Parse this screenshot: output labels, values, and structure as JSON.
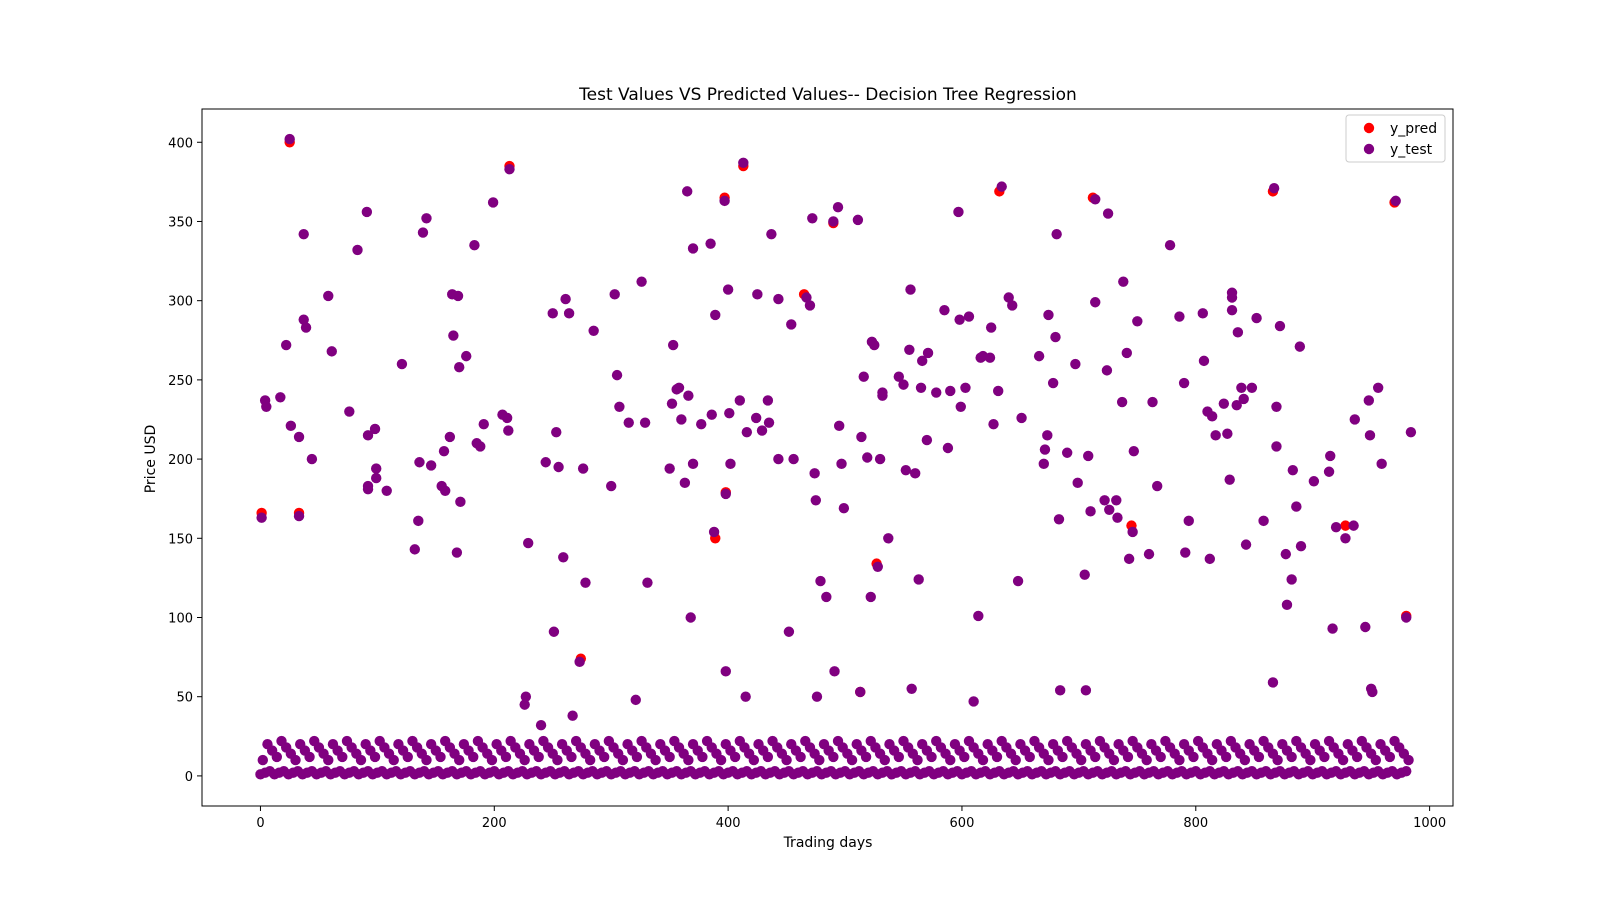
{
  "chart_data": {
    "type": "scatter",
    "title": "Test Values VS Predicted Values-- Decision Tree Regression",
    "xlabel": "Trading days",
    "ylabel": "Price USD",
    "xlim": [
      -50,
      1020
    ],
    "ylim": [
      -19,
      421
    ],
    "xticks": [
      0,
      200,
      400,
      600,
      800,
      1000
    ],
    "yticks": [
      0,
      50,
      100,
      150,
      200,
      250,
      300,
      350,
      400
    ],
    "grid": false,
    "legend_position": "top-right",
    "marker": "circle",
    "series": [
      {
        "name": "y_pred",
        "color": "#ff0000",
        "points": [
          [
            1,
            166
          ],
          [
            25,
            400
          ],
          [
            33,
            166
          ],
          [
            213,
            385
          ],
          [
            274,
            74
          ],
          [
            389,
            150
          ],
          [
            397,
            365
          ],
          [
            398,
            179
          ],
          [
            413,
            385
          ],
          [
            465,
            304
          ],
          [
            490,
            349
          ],
          [
            513,
            53
          ],
          [
            527,
            134
          ],
          [
            632,
            369
          ],
          [
            712,
            365
          ],
          [
            745,
            158
          ],
          [
            866,
            369
          ],
          [
            928,
            158
          ],
          [
            970,
            362
          ],
          [
            980,
            101
          ]
        ]
      },
      {
        "name": "y_test",
        "color": "#800080",
        "points": [
          [
            1,
            163
          ],
          [
            4,
            237
          ],
          [
            5,
            233
          ],
          [
            17,
            239
          ],
          [
            22,
            272
          ],
          [
            25,
            402
          ],
          [
            26,
            221
          ],
          [
            33,
            164
          ],
          [
            33,
            214
          ],
          [
            37,
            342
          ],
          [
            37,
            288
          ],
          [
            39,
            283
          ],
          [
            44,
            200
          ],
          [
            58,
            303
          ],
          [
            61,
            268
          ],
          [
            76,
            230
          ],
          [
            83,
            332
          ],
          [
            91,
            356
          ],
          [
            92,
            215
          ],
          [
            92,
            183
          ],
          [
            92,
            181
          ],
          [
            98,
            219
          ],
          [
            99,
            194
          ],
          [
            99,
            188
          ],
          [
            108,
            180
          ],
          [
            121,
            260
          ],
          [
            132,
            143
          ],
          [
            135,
            161
          ],
          [
            136,
            198
          ],
          [
            139,
            343
          ],
          [
            142,
            352
          ],
          [
            146,
            196
          ],
          [
            155,
            183
          ],
          [
            157,
            205
          ],
          [
            158,
            180
          ],
          [
            162,
            214
          ],
          [
            164,
            304
          ],
          [
            165,
            278
          ],
          [
            168,
            141
          ],
          [
            169,
            303
          ],
          [
            170,
            258
          ],
          [
            171,
            173
          ],
          [
            176,
            265
          ],
          [
            183,
            335
          ],
          [
            185,
            210
          ],
          [
            188,
            208
          ],
          [
            191,
            222
          ],
          [
            199,
            362
          ],
          [
            207,
            228
          ],
          [
            211,
            226
          ],
          [
            212,
            218
          ],
          [
            213,
            383
          ],
          [
            226,
            45
          ],
          [
            227,
            50
          ],
          [
            229,
            147
          ],
          [
            240,
            32
          ],
          [
            244,
            198
          ],
          [
            250,
            292
          ],
          [
            251,
            91
          ],
          [
            253,
            217
          ],
          [
            255,
            195
          ],
          [
            259,
            138
          ],
          [
            261,
            301
          ],
          [
            264,
            292
          ],
          [
            267,
            38
          ],
          [
            273,
            72
          ],
          [
            276,
            194
          ],
          [
            278,
            122
          ],
          [
            285,
            281
          ],
          [
            300,
            183
          ],
          [
            303,
            304
          ],
          [
            305,
            253
          ],
          [
            307,
            233
          ],
          [
            315,
            223
          ],
          [
            321,
            48
          ],
          [
            326,
            312
          ],
          [
            329,
            223
          ],
          [
            331,
            122
          ],
          [
            350,
            194
          ],
          [
            352,
            235
          ],
          [
            353,
            272
          ],
          [
            356,
            244
          ],
          [
            358,
            245
          ],
          [
            360,
            225
          ],
          [
            363,
            185
          ],
          [
            365,
            369
          ],
          [
            366,
            240
          ],
          [
            368,
            100
          ],
          [
            370,
            197
          ],
          [
            370,
            333
          ],
          [
            377,
            222
          ],
          [
            385,
            336
          ],
          [
            386,
            228
          ],
          [
            388,
            154
          ],
          [
            389,
            291
          ],
          [
            397,
            363
          ],
          [
            398,
            178
          ],
          [
            398,
            66
          ],
          [
            400,
            307
          ],
          [
            401,
            229
          ],
          [
            402,
            197
          ],
          [
            410,
            237
          ],
          [
            413,
            387
          ],
          [
            415,
            50
          ],
          [
            416,
            217
          ],
          [
            424,
            226
          ],
          [
            425,
            304
          ],
          [
            429,
            218
          ],
          [
            434,
            237
          ],
          [
            435,
            223
          ],
          [
            437,
            342
          ],
          [
            443,
            200
          ],
          [
            443,
            301
          ],
          [
            452,
            91
          ],
          [
            454,
            285
          ],
          [
            456,
            200
          ],
          [
            467,
            302
          ],
          [
            470,
            297
          ],
          [
            472,
            352
          ],
          [
            474,
            191
          ],
          [
            475,
            174
          ],
          [
            476,
            50
          ],
          [
            479,
            123
          ],
          [
            484,
            113
          ],
          [
            490,
            350
          ],
          [
            491,
            66
          ],
          [
            494,
            359
          ],
          [
            495,
            221
          ],
          [
            497,
            197
          ],
          [
            499,
            169
          ],
          [
            511,
            351
          ],
          [
            513,
            53
          ],
          [
            514,
            214
          ],
          [
            516,
            252
          ],
          [
            519,
            201
          ],
          [
            522,
            113
          ],
          [
            523,
            274
          ],
          [
            525,
            272
          ],
          [
            528,
            132
          ],
          [
            530,
            200
          ],
          [
            532,
            240
          ],
          [
            532,
            242
          ],
          [
            537,
            150
          ],
          [
            546,
            252
          ],
          [
            550,
            247
          ],
          [
            552,
            193
          ],
          [
            555,
            269
          ],
          [
            556,
            307
          ],
          [
            557,
            55
          ],
          [
            560,
            191
          ],
          [
            563,
            124
          ],
          [
            565,
            245
          ],
          [
            566,
            262
          ],
          [
            570,
            212
          ],
          [
            571,
            267
          ],
          [
            578,
            242
          ],
          [
            585,
            294
          ],
          [
            588,
            207
          ],
          [
            590,
            243
          ],
          [
            597,
            356
          ],
          [
            598,
            288
          ],
          [
            599,
            233
          ],
          [
            603,
            245
          ],
          [
            606,
            290
          ],
          [
            610,
            47
          ],
          [
            614,
            101
          ],
          [
            616,
            264
          ],
          [
            618,
            265
          ],
          [
            624,
            264
          ],
          [
            625,
            283
          ],
          [
            627,
            222
          ],
          [
            631,
            243
          ],
          [
            634,
            372
          ],
          [
            640,
            302
          ],
          [
            643,
            297
          ],
          [
            648,
            123
          ],
          [
            651,
            226
          ],
          [
            666,
            265
          ],
          [
            670,
            197
          ],
          [
            671,
            206
          ],
          [
            673,
            215
          ],
          [
            674,
            291
          ],
          [
            678,
            248
          ],
          [
            680,
            277
          ],
          [
            681,
            342
          ],
          [
            683,
            162
          ],
          [
            684,
            54
          ],
          [
            690,
            204
          ],
          [
            697,
            260
          ],
          [
            699,
            185
          ],
          [
            705,
            127
          ],
          [
            706,
            54
          ],
          [
            708,
            202
          ],
          [
            710,
            167
          ],
          [
            714,
            299
          ],
          [
            714,
            364
          ],
          [
            722,
            174
          ],
          [
            724,
            256
          ],
          [
            725,
            355
          ],
          [
            726,
            168
          ],
          [
            732,
            174
          ],
          [
            733,
            163
          ],
          [
            737,
            236
          ],
          [
            738,
            312
          ],
          [
            741,
            267
          ],
          [
            743,
            137
          ],
          [
            746,
            154
          ],
          [
            747,
            205
          ],
          [
            750,
            287
          ],
          [
            760,
            140
          ],
          [
            763,
            236
          ],
          [
            767,
            183
          ],
          [
            778,
            335
          ],
          [
            786,
            290
          ],
          [
            790,
            248
          ],
          [
            791,
            141
          ],
          [
            794,
            161
          ],
          [
            806,
            292
          ],
          [
            807,
            262
          ],
          [
            810,
            230
          ],
          [
            812,
            137
          ],
          [
            814,
            227
          ],
          [
            817,
            215
          ],
          [
            824,
            235
          ],
          [
            827,
            216
          ],
          [
            829,
            187
          ],
          [
            831,
            302
          ],
          [
            831,
            305
          ],
          [
            831,
            294
          ],
          [
            835,
            234
          ],
          [
            836,
            280
          ],
          [
            839,
            245
          ],
          [
            841,
            238
          ],
          [
            843,
            146
          ],
          [
            848,
            245
          ],
          [
            852,
            289
          ],
          [
            858,
            161
          ],
          [
            866,
            59
          ],
          [
            867,
            371
          ],
          [
            869,
            233
          ],
          [
            869,
            208
          ],
          [
            872,
            284
          ],
          [
            877,
            140
          ],
          [
            878,
            108
          ],
          [
            882,
            124
          ],
          [
            883,
            193
          ],
          [
            886,
            170
          ],
          [
            889,
            271
          ],
          [
            890,
            145
          ],
          [
            901,
            186
          ],
          [
            914,
            192
          ],
          [
            915,
            202
          ],
          [
            917,
            93
          ],
          [
            920,
            157
          ],
          [
            928,
            150
          ],
          [
            935,
            158
          ],
          [
            936,
            225
          ],
          [
            945,
            94
          ],
          [
            948,
            237
          ],
          [
            949,
            215
          ],
          [
            950,
            55
          ],
          [
            951,
            53
          ],
          [
            956,
            245
          ],
          [
            959,
            197
          ],
          [
            971,
            363
          ],
          [
            980,
            100
          ],
          [
            984,
            217
          ]
        ]
      }
    ]
  }
}
